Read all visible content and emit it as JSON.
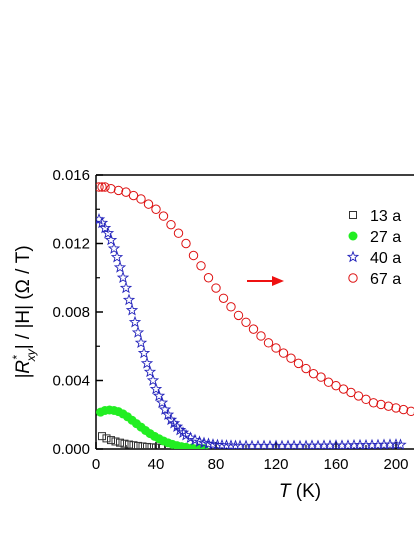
{
  "chart_data": {
    "type": "scatter",
    "xlabel_var": "T",
    "xlabel_unit": " (K)",
    "ylabel_left": "|R",
    "ylabel_sup": "*",
    "ylabel_sub": "xy",
    "ylabel_right": "| / |H| (Ω / T)",
    "xlim": [
      0,
      220
    ],
    "ylim": [
      0,
      0.016
    ],
    "x_ticks": [
      "0",
      "40",
      "80",
      "120",
      "160",
      "200"
    ],
    "x_tick_values": [
      0,
      40,
      80,
      120,
      160,
      200
    ],
    "y_ticks": [
      "0.000",
      "0.004",
      "0.008",
      "0.012",
      "0.016"
    ],
    "y_tick_values": [
      0,
      0.004,
      0.008,
      0.012,
      0.016
    ],
    "arrow_direction": "right",
    "legend_position": "top-right",
    "series": [
      {
        "name": "13 a",
        "marker": "open-square",
        "color": "#333333",
        "x": [
          4,
          7,
          10,
          13,
          16,
          19,
          22,
          25,
          28,
          31,
          34,
          37,
          40,
          44,
          48,
          52,
          56,
          60,
          65,
          70
        ],
        "y": [
          0.00075,
          0.00062,
          0.00052,
          0.00044,
          0.00037,
          0.00031,
          0.00026,
          0.00022,
          0.00018,
          0.00015,
          0.00012,
          0.0001,
          8e-05,
          6e-05,
          5e-05,
          4e-05,
          3e-05,
          2e-05,
          1e-05,
          1e-05
        ]
      },
      {
        "name": "27 a",
        "marker": "filled-circle",
        "color": "#22ee22",
        "x": [
          3,
          6,
          9,
          12,
          15,
          18,
          21,
          24,
          27,
          30,
          33,
          36,
          39,
          42,
          45,
          48,
          51,
          54,
          57,
          60,
          64,
          68,
          72
        ],
        "y": [
          0.00215,
          0.00225,
          0.00228,
          0.00225,
          0.00218,
          0.00205,
          0.00188,
          0.00168,
          0.00148,
          0.00128,
          0.00108,
          0.0009,
          0.00074,
          0.0006,
          0.00047,
          0.00036,
          0.00027,
          0.0002,
          0.00014,
          0.0001,
          6e-05,
          4e-05,
          2e-05
        ]
      },
      {
        "name": "40 a",
        "marker": "open-star",
        "color": "#2222bb",
        "x": [
          2,
          4,
          6,
          8,
          10,
          12,
          14,
          16,
          18,
          20,
          22,
          24,
          26,
          28,
          30,
          32,
          34,
          36,
          38,
          40,
          42,
          44,
          46,
          48,
          50,
          52,
          54,
          56,
          58,
          60,
          63,
          66,
          69,
          72,
          75,
          78,
          81,
          84,
          87,
          90,
          93,
          96,
          100,
          104,
          108,
          112,
          116,
          120,
          124,
          128,
          132,
          136,
          140,
          144,
          148,
          152,
          156,
          160,
          164,
          168,
          172,
          176,
          180,
          184,
          188,
          192,
          196,
          200,
          203
        ],
        "y": [
          0.0134,
          0.0132,
          0.0129,
          0.0126,
          0.0122,
          0.0117,
          0.0112,
          0.0106,
          0.01,
          0.0094,
          0.0087,
          0.0081,
          0.0074,
          0.0068,
          0.0062,
          0.0056,
          0.005,
          0.0045,
          0.004,
          0.0035,
          0.0031,
          0.0027,
          0.0023,
          0.002,
          0.0017,
          0.0015,
          0.0013,
          0.0011,
          0.00095,
          0.0008,
          0.00065,
          0.00052,
          0.00042,
          0.00035,
          0.0003,
          0.00026,
          0.00023,
          0.00021,
          0.0002,
          0.00019,
          0.00018,
          0.00018,
          0.00018,
          0.00017,
          0.00017,
          0.00018,
          0.00017,
          0.00018,
          0.00017,
          0.00018,
          0.00018,
          0.00017,
          0.00018,
          0.00019,
          0.00018,
          0.00019,
          0.00019,
          0.0002,
          0.00019,
          0.0002,
          0.00021,
          0.00022,
          0.00021,
          0.00022,
          0.00023,
          0.00024,
          0.00025,
          0.00026,
          0.00024
        ]
      },
      {
        "name": "67 a",
        "marker": "open-circle",
        "color": "#dd1111",
        "x": [
          2,
          4,
          6,
          10,
          15,
          20,
          25,
          30,
          35,
          40,
          45,
          50,
          55,
          60,
          65,
          70,
          75,
          80,
          85,
          90,
          95,
          100,
          105,
          110,
          115,
          120,
          125,
          130,
          135,
          140,
          145,
          150,
          155,
          160,
          165,
          170,
          175,
          180,
          185,
          190,
          195,
          200,
          205,
          210,
          215,
          220
        ],
        "y": [
          0.0153,
          0.0153,
          0.0153,
          0.0152,
          0.0151,
          0.015,
          0.0148,
          0.0146,
          0.0143,
          0.014,
          0.0136,
          0.0131,
          0.0126,
          0.012,
          0.0113,
          0.0107,
          0.01,
          0.0094,
          0.0088,
          0.0083,
          0.0078,
          0.0074,
          0.007,
          0.0066,
          0.0062,
          0.0059,
          0.0056,
          0.0053,
          0.005,
          0.0047,
          0.0044,
          0.0042,
          0.0039,
          0.0037,
          0.0035,
          0.0033,
          0.0031,
          0.0029,
          0.0027,
          0.0026,
          0.0025,
          0.0024,
          0.0023,
          0.0022,
          0.0021,
          0.002
        ]
      }
    ]
  }
}
